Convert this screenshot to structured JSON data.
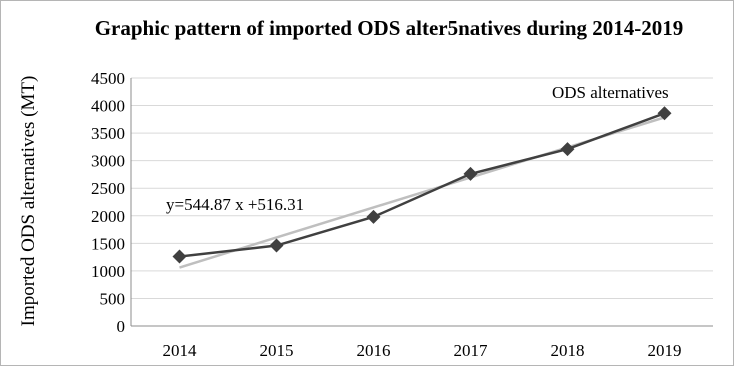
{
  "chart_data": {
    "type": "line",
    "title": "Graphic pattern of imported ODS alter5natives during 2014-2019",
    "xlabel": "",
    "ylabel": "Imported ODS alternatives (MT)",
    "categories": [
      "2014",
      "2015",
      "2016",
      "2017",
      "2018",
      "2019"
    ],
    "ylim": [
      0,
      4500
    ],
    "yticks": [
      0,
      500,
      1000,
      1500,
      2000,
      2500,
      3000,
      3500,
      4000,
      4500
    ],
    "grid": true,
    "series": [
      {
        "name": "ODS alternatives",
        "values": [
          1260,
          1460,
          1980,
          2760,
          3210,
          3860
        ],
        "color": "#404040",
        "marker": "diamond"
      }
    ],
    "trendline": {
      "type": "linear",
      "slope": 544.87,
      "intercept": 516.31,
      "color": "#bfbfbf"
    },
    "annotations": {
      "equation": "y=544.87 x +516.31",
      "series_label": "ODS alternatives"
    }
  }
}
